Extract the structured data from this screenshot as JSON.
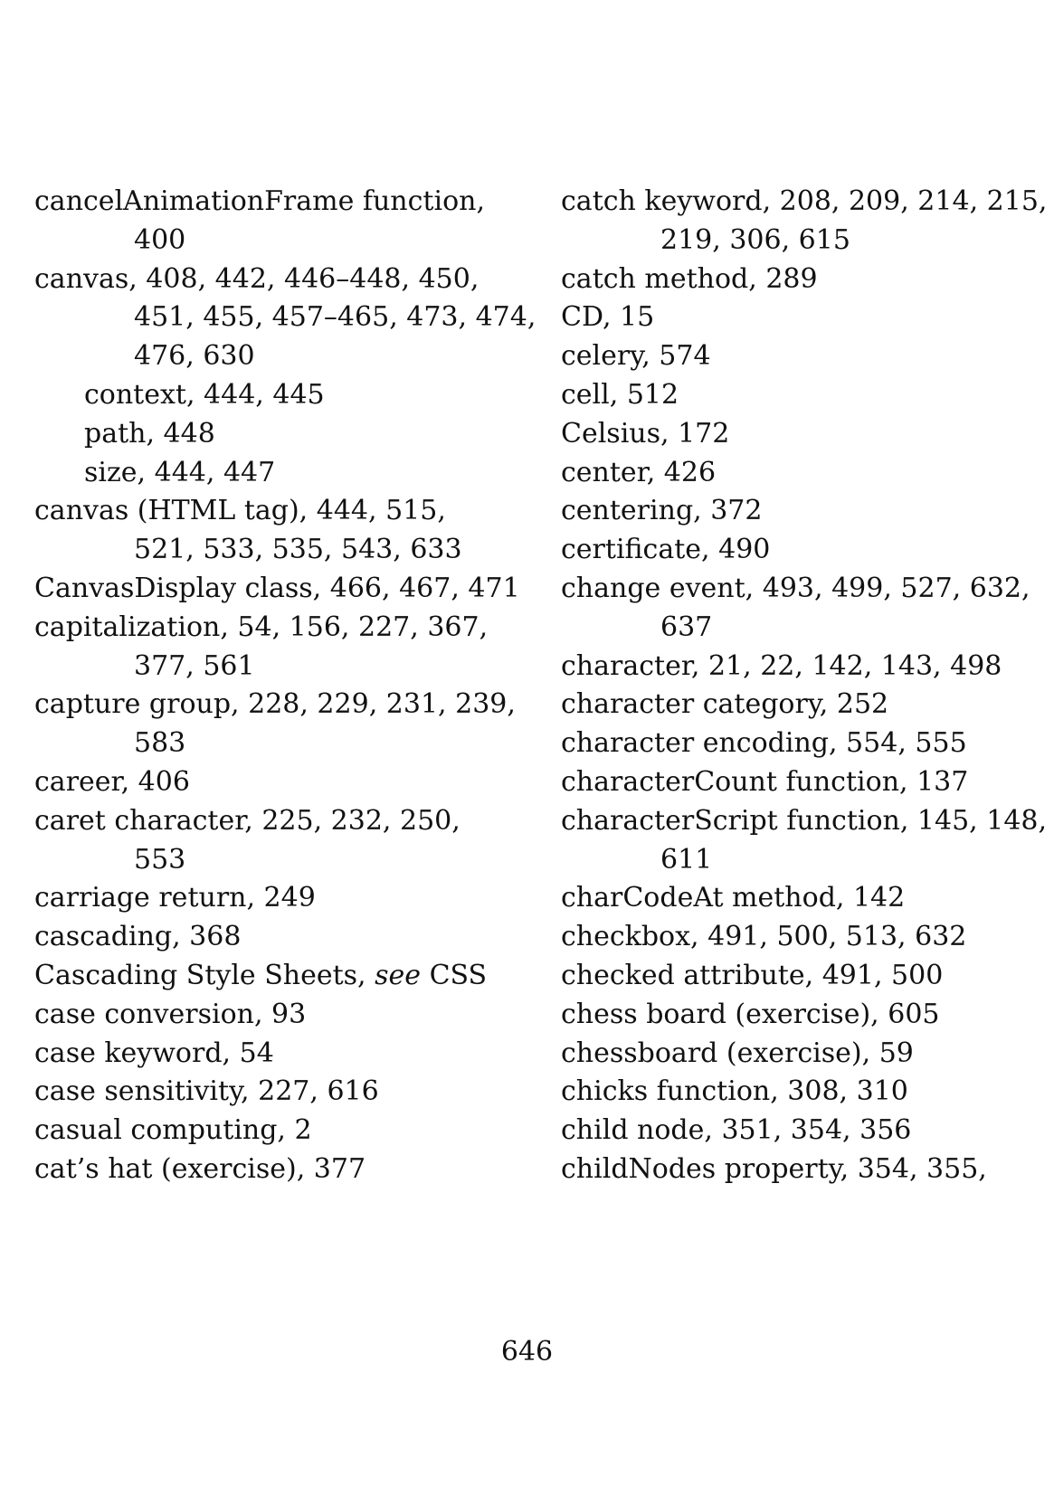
{
  "left_column": [
    {
      "level": 0,
      "text": "cancelAnimationFrame function,"
    },
    {
      "level": "c",
      "text": "400"
    },
    {
      "level": 0,
      "text": "canvas, 408, 442, 446–448, 450,"
    },
    {
      "level": "c",
      "text": "451, 455, 457–465, 473, 474,"
    },
    {
      "level": "c",
      "text": "476, 630"
    },
    {
      "level": 1,
      "text": "context, 444, 445"
    },
    {
      "level": 1,
      "text": "path, 448"
    },
    {
      "level": 1,
      "text": "size, 444, 447"
    },
    {
      "level": 0,
      "text": "canvas (HTML tag), 444, 515,"
    },
    {
      "level": "c",
      "text": "521, 533, 535, 543, 633"
    },
    {
      "level": 0,
      "text": "CanvasDisplay class, 466, 467, 471"
    },
    {
      "level": 0,
      "text": "capitalization, 54, 156, 227, 367,"
    },
    {
      "level": "c",
      "text": "377, 561"
    },
    {
      "level": 0,
      "text": "capture group, 228, 229, 231, 239,"
    },
    {
      "level": "c",
      "text": "583"
    },
    {
      "level": 0,
      "text": "career, 406"
    },
    {
      "level": 0,
      "text": "caret character, 225, 232, 250,"
    },
    {
      "level": "c",
      "text": "553"
    },
    {
      "level": 0,
      "text": "carriage return, 249"
    },
    {
      "level": 0,
      "text": "cascading, 368"
    },
    {
      "level": 0,
      "text": "Cascading Style Sheets, ",
      "see": "see",
      "after": " CSS"
    },
    {
      "level": 0,
      "text": "case conversion, 93"
    },
    {
      "level": 0,
      "text": "case keyword, 54"
    },
    {
      "level": 0,
      "text": "case sensitivity, 227, 616"
    },
    {
      "level": 0,
      "text": "casual computing, 2"
    },
    {
      "level": 0,
      "text": "cat’s hat (exercise), 377"
    }
  ],
  "right_column": [
    {
      "level": 0,
      "text": "catch keyword, 208, 209, 214, 215,"
    },
    {
      "level": "c",
      "text": "219, 306, 615"
    },
    {
      "level": 0,
      "text": "catch method, 289"
    },
    {
      "level": 0,
      "text": "CD, 15"
    },
    {
      "level": 0,
      "text": "celery, 574"
    },
    {
      "level": 0,
      "text": "cell, 512"
    },
    {
      "level": 0,
      "text": "Celsius, 172"
    },
    {
      "level": 0,
      "text": "center, 426"
    },
    {
      "level": 0,
      "text": "centering, 372"
    },
    {
      "level": 0,
      "text": "certificate, 490"
    },
    {
      "level": 0,
      "text": "change event, 493, 499, 527, 632,"
    },
    {
      "level": "c",
      "text": "637"
    },
    {
      "level": 0,
      "text": "character, 21, 22, 142, 143, 498"
    },
    {
      "level": 0,
      "text": "character category, 252"
    },
    {
      "level": 0,
      "text": "character encoding, 554, 555"
    },
    {
      "level": 0,
      "text": "characterCount function, 137"
    },
    {
      "level": 0,
      "text": "characterScript function, 145, 148,"
    },
    {
      "level": "c",
      "text": "611"
    },
    {
      "level": 0,
      "text": "charCodeAt method, 142"
    },
    {
      "level": 0,
      "text": "checkbox, 491, 500, 513, 632"
    },
    {
      "level": 0,
      "text": "checked attribute, 491, 500"
    },
    {
      "level": 0,
      "text": "chess board (exercise), 605"
    },
    {
      "level": 0,
      "text": "chessboard (exercise), 59"
    },
    {
      "level": 0,
      "text": "chicks function, 308, 310"
    },
    {
      "level": 0,
      "text": "child node, 351, 354, 356"
    },
    {
      "level": 0,
      "text": "childNodes property, 354, 355,"
    }
  ],
  "page_number": "646"
}
